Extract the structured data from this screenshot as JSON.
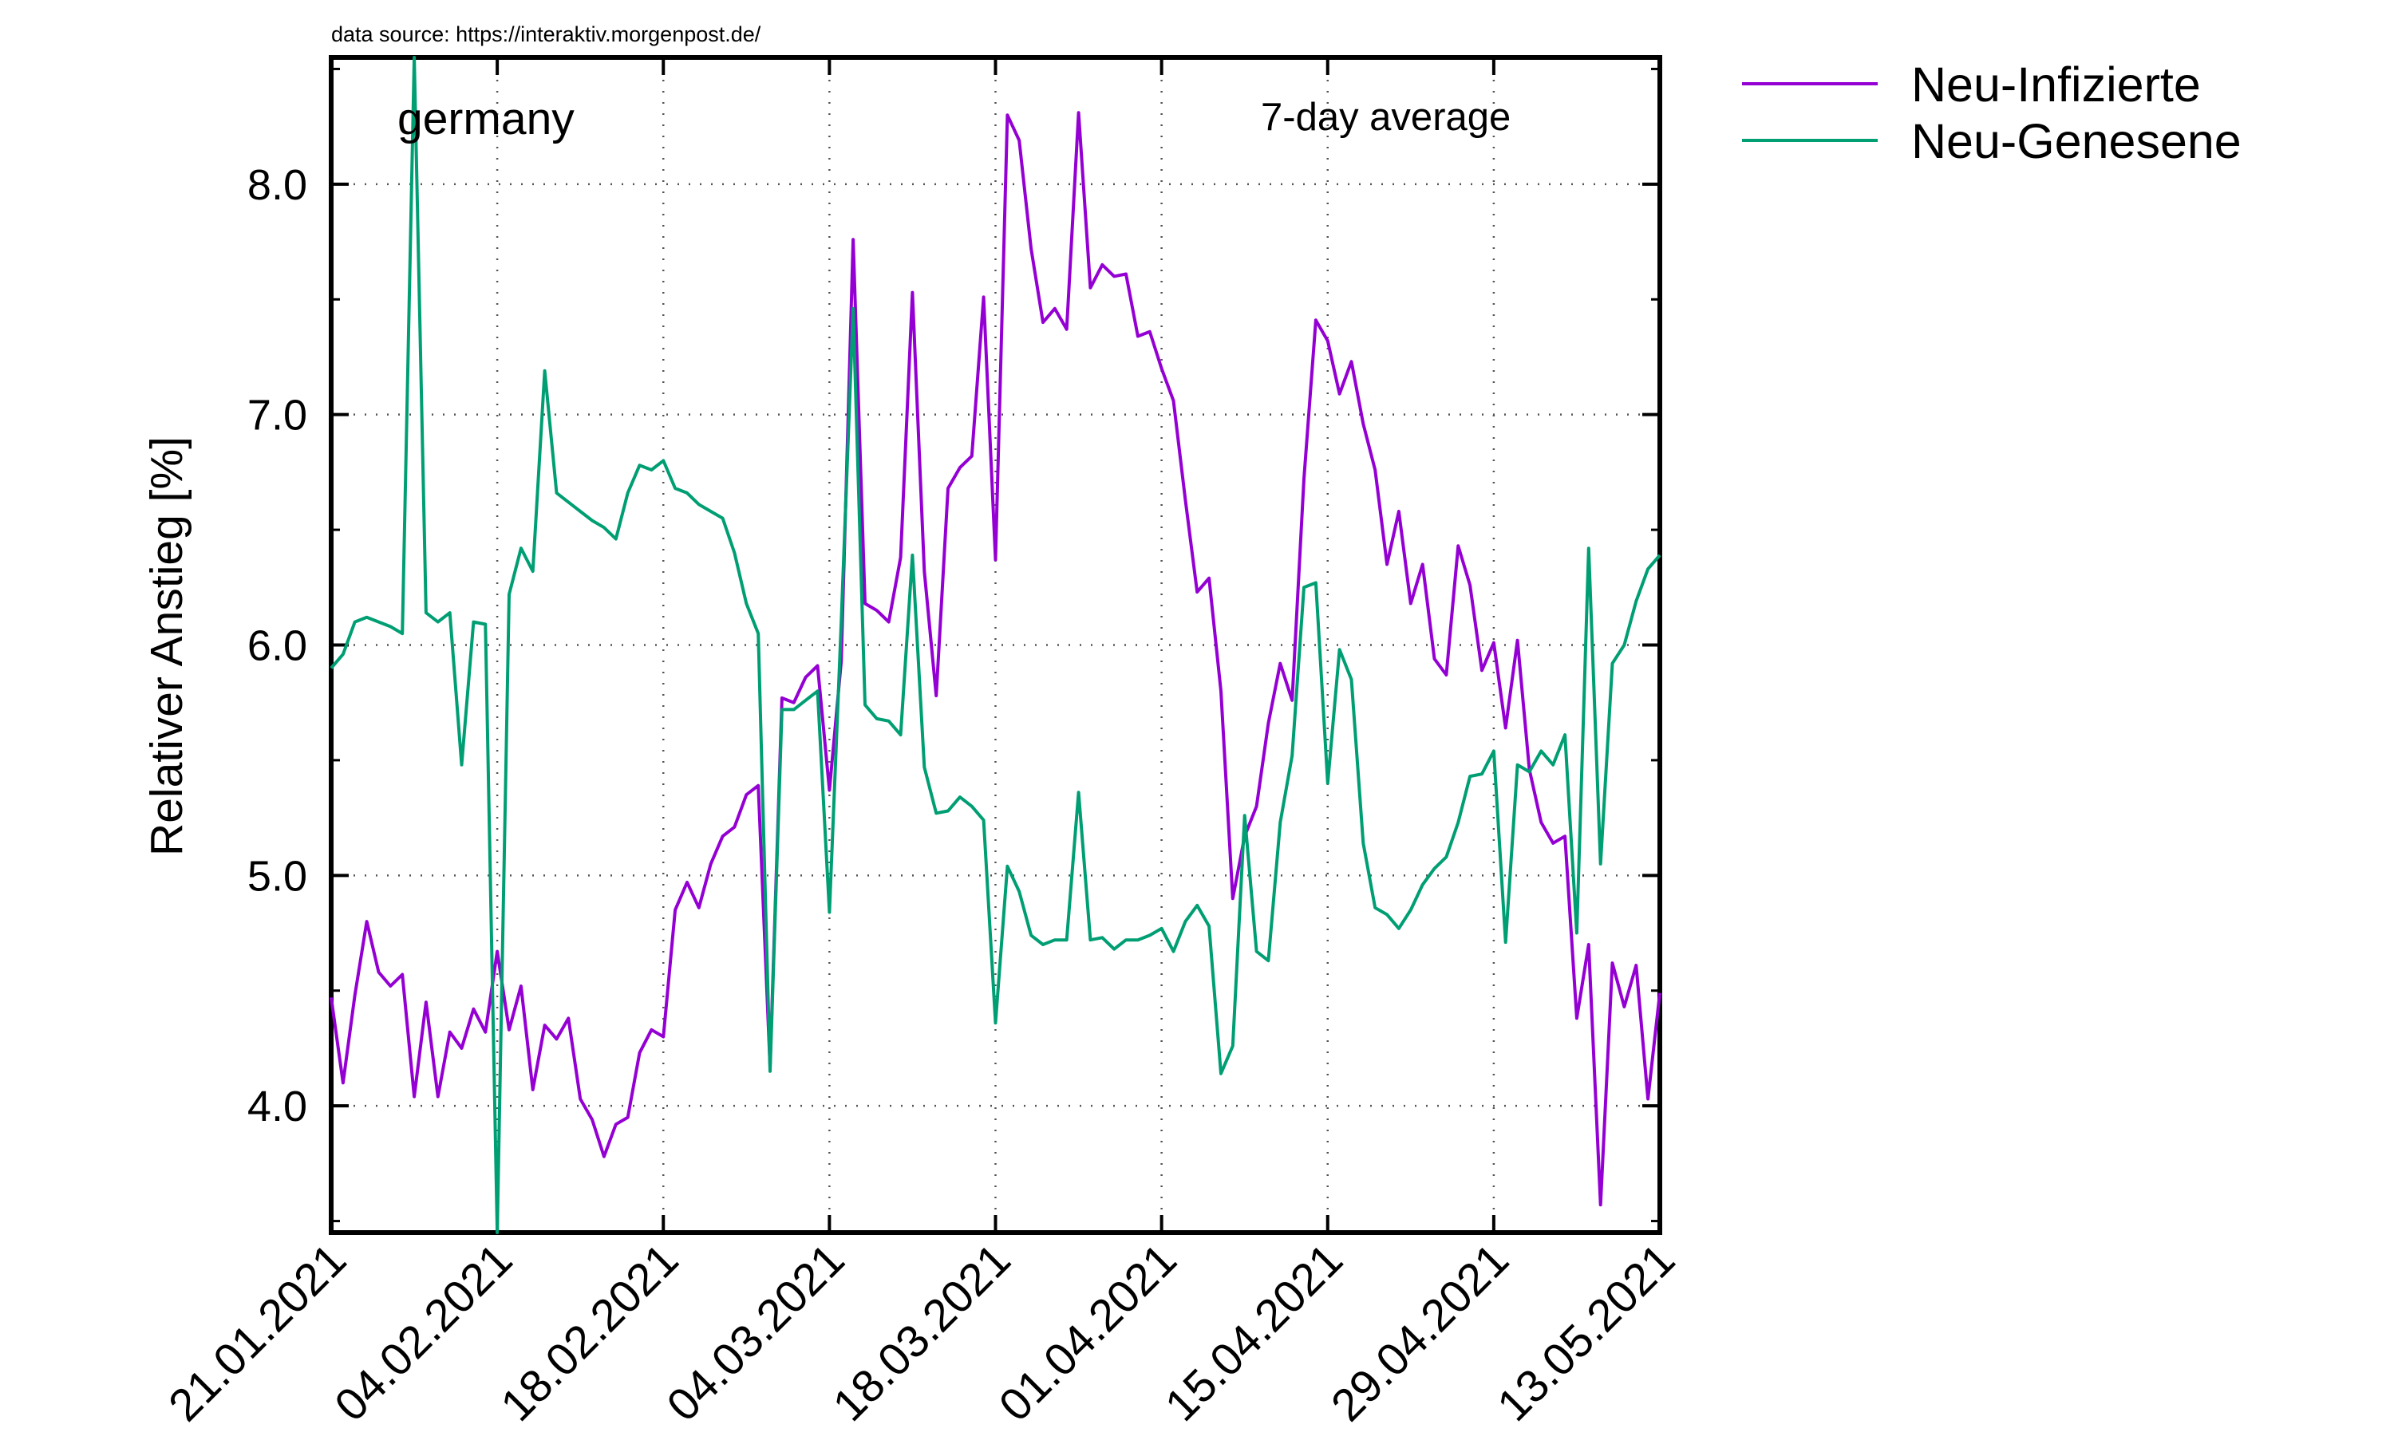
{
  "source_note": "data source: https://interaktiv.morgenpost.de/",
  "chart_data": {
    "type": "line",
    "region": "germany",
    "annotation": "7-day average",
    "ylabel": "Relativer Anstieg [%]",
    "xlabel": "",
    "ylim": [
      3.45,
      8.55
    ],
    "yticks": [
      4.0,
      5.0,
      6.0,
      7.0,
      8.0
    ],
    "ytick_labels": [
      "4.0",
      "5.0",
      "6.0",
      "7.0",
      "8.0"
    ],
    "xlim": [
      0,
      112
    ],
    "xticks": [
      0,
      14,
      28,
      42,
      56,
      70,
      84,
      98,
      112
    ],
    "xtick_labels": [
      "21.01.2021",
      "04.02.2021",
      "18.02.2021",
      "04.03.2021",
      "18.03.2021",
      "01.04.2021",
      "15.04.2021",
      "29.04.2021",
      "13.05.2021"
    ],
    "grid": true,
    "legend_position": "outside-top-right",
    "colors": {
      "infected": "#9400d3",
      "recovered": "#009e73"
    },
    "series": [
      {
        "name": "Neu-Infizierte",
        "color": "#9400d3",
        "x": [
          0,
          1,
          2,
          3,
          4,
          5,
          6,
          7,
          8,
          9,
          10,
          11,
          12,
          13,
          14,
          15,
          16,
          17,
          18,
          19,
          20,
          21,
          22,
          23,
          24,
          25,
          26,
          27,
          28,
          29,
          30,
          31,
          32,
          33,
          34,
          35,
          36,
          37,
          38,
          39,
          40,
          41,
          42,
          43,
          44,
          45,
          46,
          47,
          48,
          49,
          50,
          51,
          52,
          53,
          54,
          55,
          56,
          57,
          58,
          59,
          60,
          61,
          62,
          63,
          64,
          65,
          66,
          67,
          68,
          69,
          70,
          71,
          72,
          73,
          74,
          75,
          76,
          77,
          78,
          79,
          80,
          81,
          82,
          83,
          84,
          85,
          86,
          87,
          88,
          89,
          90,
          91,
          92,
          93,
          94,
          95,
          96,
          97,
          98,
          99,
          100,
          101,
          102,
          103,
          104,
          105,
          106,
          107,
          108,
          109,
          110,
          111,
          112
        ],
        "values": [
          4.47,
          4.1,
          4.48,
          4.8,
          4.58,
          4.52,
          4.57,
          4.04,
          4.45,
          4.04,
          4.32,
          4.25,
          4.42,
          4.32,
          4.67,
          4.33,
          4.52,
          4.07,
          4.35,
          4.29,
          4.38,
          4.03,
          3.94,
          3.78,
          3.92,
          3.95,
          4.23,
          4.33,
          4.3,
          4.85,
          4.97,
          4.86,
          5.05,
          5.17,
          5.21,
          5.35,
          5.39,
          4.17,
          5.77,
          5.75,
          5.86,
          5.91,
          5.37,
          5.93,
          7.76,
          6.18,
          6.15,
          6.1,
          6.38,
          7.53,
          6.32,
          5.78,
          6.68,
          6.77,
          6.82,
          7.51,
          6.37,
          8.3,
          8.19,
          7.72,
          7.4,
          7.46,
          7.37,
          8.31,
          7.55,
          7.65,
          7.6,
          7.61,
          7.34,
          7.36,
          7.2,
          7.06,
          6.63,
          6.23,
          6.29,
          5.8,
          4.9,
          5.17,
          5.3,
          5.66,
          5.92,
          5.76,
          6.72,
          7.41,
          7.32,
          7.09,
          7.23,
          6.96,
          6.76,
          6.35,
          6.58,
          6.18,
          6.35,
          5.94,
          5.87,
          6.43,
          6.26,
          5.89,
          6.01,
          5.64,
          6.02,
          5.46,
          5.23,
          5.14,
          5.17,
          4.38,
          4.7,
          3.57,
          4.62,
          4.43,
          4.61,
          4.03,
          4.49
        ]
      },
      {
        "name": "Neu-Genesene",
        "color": "#009e73",
        "x": [
          0,
          1,
          2,
          3,
          4,
          5,
          6,
          7,
          8,
          9,
          10,
          11,
          12,
          13,
          14,
          15,
          16,
          17,
          18,
          19,
          20,
          21,
          22,
          23,
          24,
          25,
          26,
          27,
          28,
          29,
          30,
          31,
          32,
          33,
          34,
          35,
          36,
          37,
          38,
          39,
          40,
          41,
          42,
          43,
          44,
          45,
          46,
          47,
          48,
          49,
          50,
          51,
          52,
          53,
          54,
          55,
          56,
          57,
          58,
          59,
          60,
          61,
          62,
          63,
          64,
          65,
          66,
          67,
          68,
          69,
          70,
          71,
          72,
          73,
          74,
          75,
          76,
          77,
          78,
          79,
          80,
          81,
          82,
          83,
          84,
          85,
          86,
          87,
          88,
          89,
          90,
          91,
          92,
          93,
          94,
          95,
          96,
          97,
          98,
          99,
          100,
          101,
          102,
          103,
          104,
          105,
          106,
          107,
          108,
          109,
          110,
          111,
          112
        ],
        "values": [
          5.9,
          5.96,
          6.1,
          6.12,
          6.1,
          6.08,
          6.05,
          8.55,
          6.14,
          6.1,
          6.14,
          5.48,
          6.1,
          6.09,
          3.45,
          6.22,
          6.42,
          6.32,
          7.19,
          6.66,
          6.62,
          6.58,
          6.54,
          6.51,
          6.46,
          6.66,
          6.78,
          6.76,
          6.8,
          6.68,
          6.66,
          6.61,
          6.58,
          6.55,
          6.4,
          6.18,
          6.05,
          4.15,
          5.72,
          5.72,
          5.76,
          5.8,
          4.84,
          6.1,
          7.46,
          5.74,
          5.68,
          5.67,
          5.61,
          6.39,
          5.47,
          5.27,
          5.28,
          5.34,
          5.3,
          5.24,
          4.36,
          5.04,
          4.93,
          4.74,
          4.7,
          4.72,
          4.72,
          5.36,
          4.72,
          4.73,
          4.68,
          4.72,
          4.72,
          4.74,
          4.77,
          4.67,
          4.8,
          4.87,
          4.78,
          4.14,
          4.26,
          5.26,
          4.67,
          4.63,
          5.23,
          5.52,
          6.25,
          6.27,
          5.4,
          5.98,
          5.85,
          5.14,
          4.86,
          4.83,
          4.77,
          4.85,
          4.96,
          5.03,
          5.08,
          5.23,
          5.43,
          5.44,
          5.54,
          4.71,
          5.48,
          5.45,
          5.54,
          5.48,
          5.61,
          4.75,
          6.42,
          5.05,
          5.92,
          6.0,
          6.19,
          6.33,
          6.39
        ]
      }
    ]
  }
}
